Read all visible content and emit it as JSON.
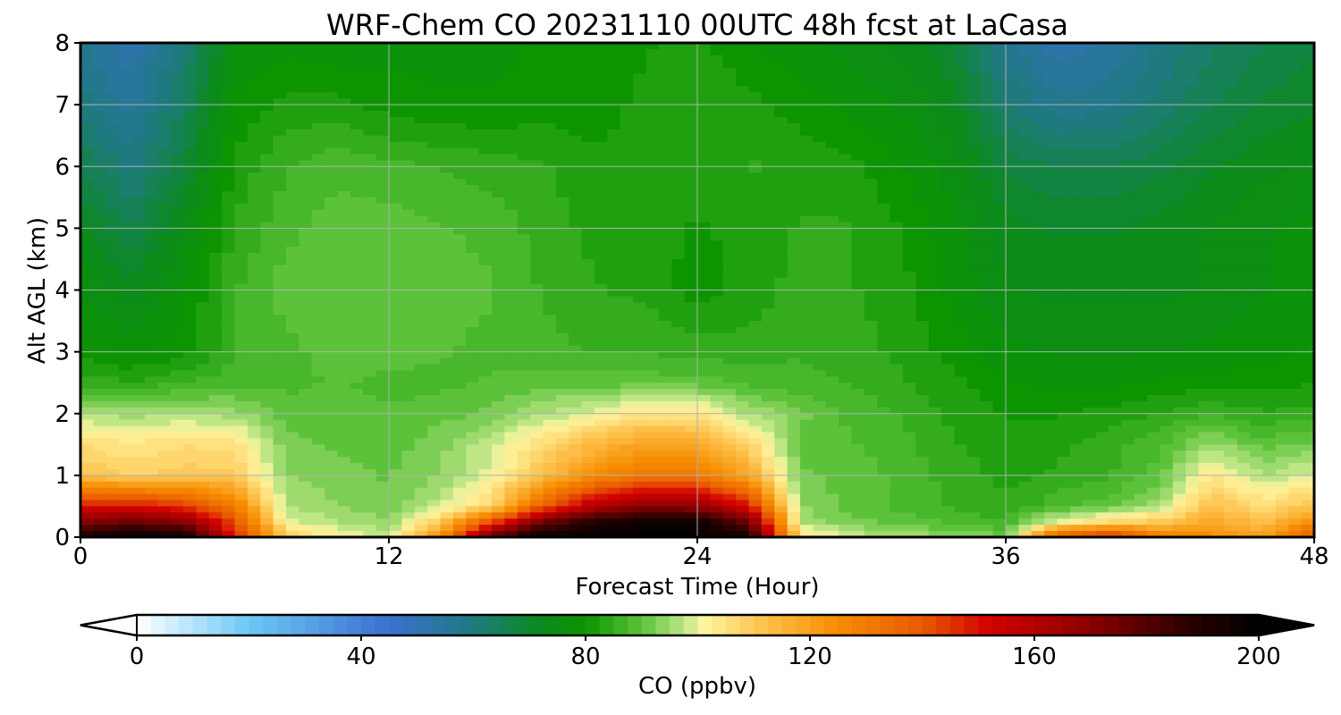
{
  "chart_data": {
    "type": "heatmap",
    "title": "WRF-Chem CO  20231110 00UTC 48h fcst at LaCasa",
    "xlabel": "Forecast Time (Hour)",
    "ylabel": "Alt AGL (km)",
    "xlim": [
      0,
      48
    ],
    "ylim": [
      0,
      8
    ],
    "xticks": [
      0,
      12,
      24,
      36,
      48
    ],
    "yticks": [
      0,
      1,
      2,
      3,
      4,
      5,
      6,
      7,
      8
    ],
    "grid": true,
    "x_hours": [
      0,
      2,
      4,
      6,
      8,
      10,
      12,
      14,
      16,
      18,
      20,
      22,
      24,
      26,
      28,
      30,
      32,
      34,
      36,
      38,
      40,
      42,
      44,
      46,
      48
    ],
    "y_km": [
      0,
      0.25,
      0.5,
      1,
      1.5,
      2,
      2.5,
      3,
      4,
      5,
      6,
      7,
      8
    ],
    "z_ppbv": [
      [
        195,
        200,
        198,
        150,
        110,
        102,
        98,
        125,
        180,
        200,
        200,
        200,
        200,
        195,
        105,
        98,
        96,
        94,
        92,
        140,
        150,
        130,
        125,
        120,
        140
      ],
      [
        170,
        175,
        170,
        140,
        100,
        96,
        94,
        110,
        140,
        175,
        190,
        195,
        195,
        175,
        96,
        92,
        90,
        88,
        86,
        100,
        106,
        110,
        118,
        112,
        125
      ],
      [
        150,
        150,
        145,
        130,
        96,
        94,
        92,
        98,
        108,
        138,
        160,
        170,
        168,
        150,
        94,
        90,
        88,
        86,
        84,
        88,
        90,
        96,
        112,
        106,
        112
      ],
      [
        112,
        108,
        110,
        110,
        94,
        92,
        91,
        94,
        100,
        112,
        125,
        132,
        130,
        118,
        92,
        90,
        88,
        85,
        83,
        84,
        86,
        90,
        104,
        96,
        100
      ],
      [
        106,
        104,
        106,
        105,
        92,
        91,
        90,
        93,
        98,
        106,
        114,
        120,
        118,
        108,
        90,
        89,
        87,
        84,
        82,
        83,
        85,
        88,
        95,
        90,
        92
      ],
      [
        96,
        95,
        96,
        95,
        90,
        90,
        89,
        90,
        92,
        96,
        100,
        104,
        104,
        96,
        92,
        88,
        86,
        83,
        81,
        81,
        82,
        84,
        86,
        84,
        85
      ],
      [
        85,
        84,
        86,
        88,
        88,
        89,
        88,
        88,
        89,
        90,
        90,
        90,
        90,
        88,
        87,
        86,
        84,
        82,
        79,
        78,
        78,
        79,
        80,
        80,
        81
      ],
      [
        80,
        78,
        80,
        86,
        88,
        90,
        90,
        89,
        88,
        87,
        86,
        86,
        85,
        85,
        86,
        85,
        83,
        80,
        77,
        76,
        76,
        76,
        77,
        78,
        79
      ],
      [
        76,
        72,
        78,
        86,
        90,
        91,
        91,
        90,
        89,
        86,
        84,
        83,
        80,
        82,
        85,
        84,
        82,
        78,
        74,
        73,
        73,
        73,
        74,
        76,
        78
      ],
      [
        72,
        66,
        74,
        84,
        88,
        90,
        90,
        89,
        88,
        85,
        83,
        82,
        81,
        82,
        84,
        84,
        81,
        77,
        72,
        71,
        71,
        72,
        74,
        76,
        77
      ],
      [
        66,
        60,
        68,
        82,
        86,
        88,
        87,
        86,
        85,
        84,
        82,
        82,
        82,
        84,
        83,
        82,
        79,
        75,
        68,
        66,
        66,
        68,
        71,
        73,
        74
      ],
      [
        60,
        55,
        64,
        79,
        82,
        82,
        80,
        79,
        79,
        80,
        80,
        82,
        84,
        82,
        80,
        78,
        76,
        72,
        62,
        57,
        58,
        62,
        66,
        69,
        71
      ],
      [
        57,
        52,
        61,
        76,
        78,
        77,
        78,
        78,
        78,
        79,
        79,
        81,
        82,
        79,
        77,
        75,
        73,
        69,
        57,
        52,
        54,
        59,
        63,
        66,
        68
      ]
    ],
    "colorbar": {
      "label": "CO  (ppbv)",
      "min": 0,
      "max": 200,
      "ticks": [
        0,
        40,
        80,
        120,
        160,
        200
      ],
      "extend": "both",
      "stops": [
        {
          "v": 0,
          "c": "#ffffff"
        },
        {
          "v": 20,
          "c": "#6cc8f5"
        },
        {
          "v": 45,
          "c": "#3b6fd0"
        },
        {
          "v": 60,
          "c": "#1f7a80"
        },
        {
          "v": 72,
          "c": "#0a8a1c"
        },
        {
          "v": 80,
          "c": "#0c9500"
        },
        {
          "v": 90,
          "c": "#5cc23a"
        },
        {
          "v": 98,
          "c": "#c5e88c"
        },
        {
          "v": 101,
          "c": "#fff5a0"
        },
        {
          "v": 112,
          "c": "#fdc04a"
        },
        {
          "v": 125,
          "c": "#f78c00"
        },
        {
          "v": 140,
          "c": "#e85a00"
        },
        {
          "v": 152,
          "c": "#d40000"
        },
        {
          "v": 170,
          "c": "#8a0000"
        },
        {
          "v": 188,
          "c": "#2a0000"
        },
        {
          "v": 200,
          "c": "#000000"
        }
      ]
    }
  }
}
